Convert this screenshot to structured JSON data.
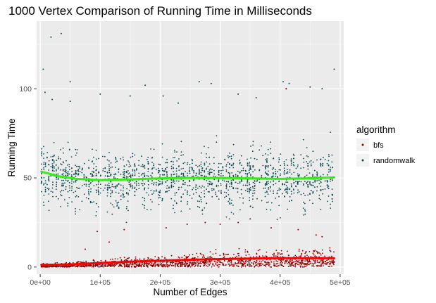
{
  "chart_data": {
    "type": "scatter",
    "title": "1000  Vertex Comparison of Running Time in Milliseconds",
    "xlabel": "Number of Edges",
    "ylabel": "Running Time",
    "xlim": [
      -6000,
      506000
    ],
    "ylim": [
      -4,
      138
    ],
    "x_ticks": [
      0,
      100000,
      200000,
      300000,
      400000,
      500000
    ],
    "x_tick_labels": [
      "0e+00",
      "1e+05",
      "2e+05",
      "3e+05",
      "4e+05",
      "5e+05"
    ],
    "y_ticks": [
      0,
      50,
      100
    ],
    "y_tick_labels": [
      "0",
      "50",
      "100"
    ],
    "grid": true,
    "legend": {
      "title": "algorithm",
      "position": "right"
    },
    "series": [
      {
        "name": "bfs",
        "color": "#8b0000",
        "smooth_color": "#ff0000",
        "smooth": [
          [
            2000,
            1.2
          ],
          [
            50000,
            1.5
          ],
          [
            100000,
            2.3
          ],
          [
            150000,
            3.0
          ],
          [
            200000,
            3.6
          ],
          [
            250000,
            4.1
          ],
          [
            300000,
            4.5
          ],
          [
            350000,
            4.8
          ],
          [
            400000,
            5.0
          ],
          [
            450000,
            5.0
          ],
          [
            490000,
            5.0
          ]
        ],
        "outliers": [
          [
            410000,
            100
          ],
          [
            350000,
            27
          ],
          [
            330000,
            25
          ],
          [
            300000,
            24
          ],
          [
            275000,
            25
          ],
          [
            245000,
            24
          ],
          [
            210000,
            22
          ],
          [
            140000,
            21
          ],
          [
            385000,
            22
          ],
          [
            430000,
            21
          ],
          [
            460000,
            18
          ],
          [
            470000,
            17
          ],
          [
            115000,
            14
          ],
          [
            95000,
            20
          ],
          [
            75000,
            10
          ]
        ]
      },
      {
        "name": "randomwalk",
        "color": "#0b4a50",
        "smooth_color": "#33ee11",
        "smooth": [
          [
            2000,
            53.5
          ],
          [
            30000,
            51
          ],
          [
            60000,
            49.5
          ],
          [
            100000,
            48.8
          ],
          [
            150000,
            49.2
          ],
          [
            200000,
            49.8
          ],
          [
            250000,
            50.0
          ],
          [
            300000,
            50.0
          ],
          [
            350000,
            49.8
          ],
          [
            400000,
            49.5
          ],
          [
            450000,
            49.8
          ],
          [
            490000,
            50.3
          ]
        ],
        "outliers": [
          [
            35000,
            131
          ],
          [
            18000,
            129
          ],
          [
            5000,
            111
          ],
          [
            490000,
            111
          ],
          [
            50000,
            104
          ],
          [
            405000,
            104
          ],
          [
            415000,
            103
          ],
          [
            265000,
            104
          ],
          [
            285000,
            103
          ],
          [
            175000,
            102
          ],
          [
            410000,
            100
          ],
          [
            450000,
            101
          ],
          [
            470000,
            100
          ],
          [
            8000,
            98
          ],
          [
            100000,
            97
          ],
          [
            150000,
            96
          ],
          [
            205000,
            96
          ],
          [
            330000,
            97
          ],
          [
            360000,
            95
          ],
          [
            230000,
            92
          ],
          [
            50000,
            93
          ],
          [
            20000,
            94
          ]
        ]
      }
    ]
  }
}
